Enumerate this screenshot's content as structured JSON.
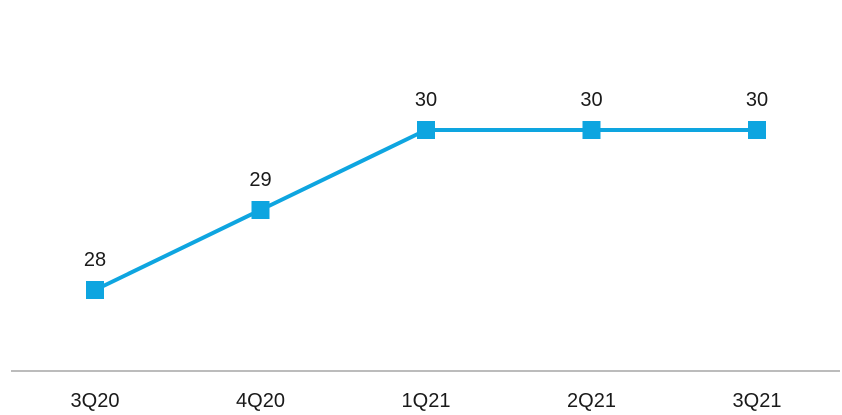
{
  "chart_data": {
    "type": "line",
    "categories": [
      "3Q20",
      "4Q20",
      "1Q21",
      "2Q21",
      "3Q21"
    ],
    "series": [
      {
        "values": [
          28,
          29,
          30,
          30,
          30
        ],
        "color": "#0ea5e0",
        "marker": "square"
      }
    ],
    "data_labels": [
      "28",
      "29",
      "30",
      "30",
      "30"
    ],
    "ylim": [
      27,
      31
    ],
    "grid": false,
    "legend": "none",
    "axis_color": "#a6a6a6"
  }
}
